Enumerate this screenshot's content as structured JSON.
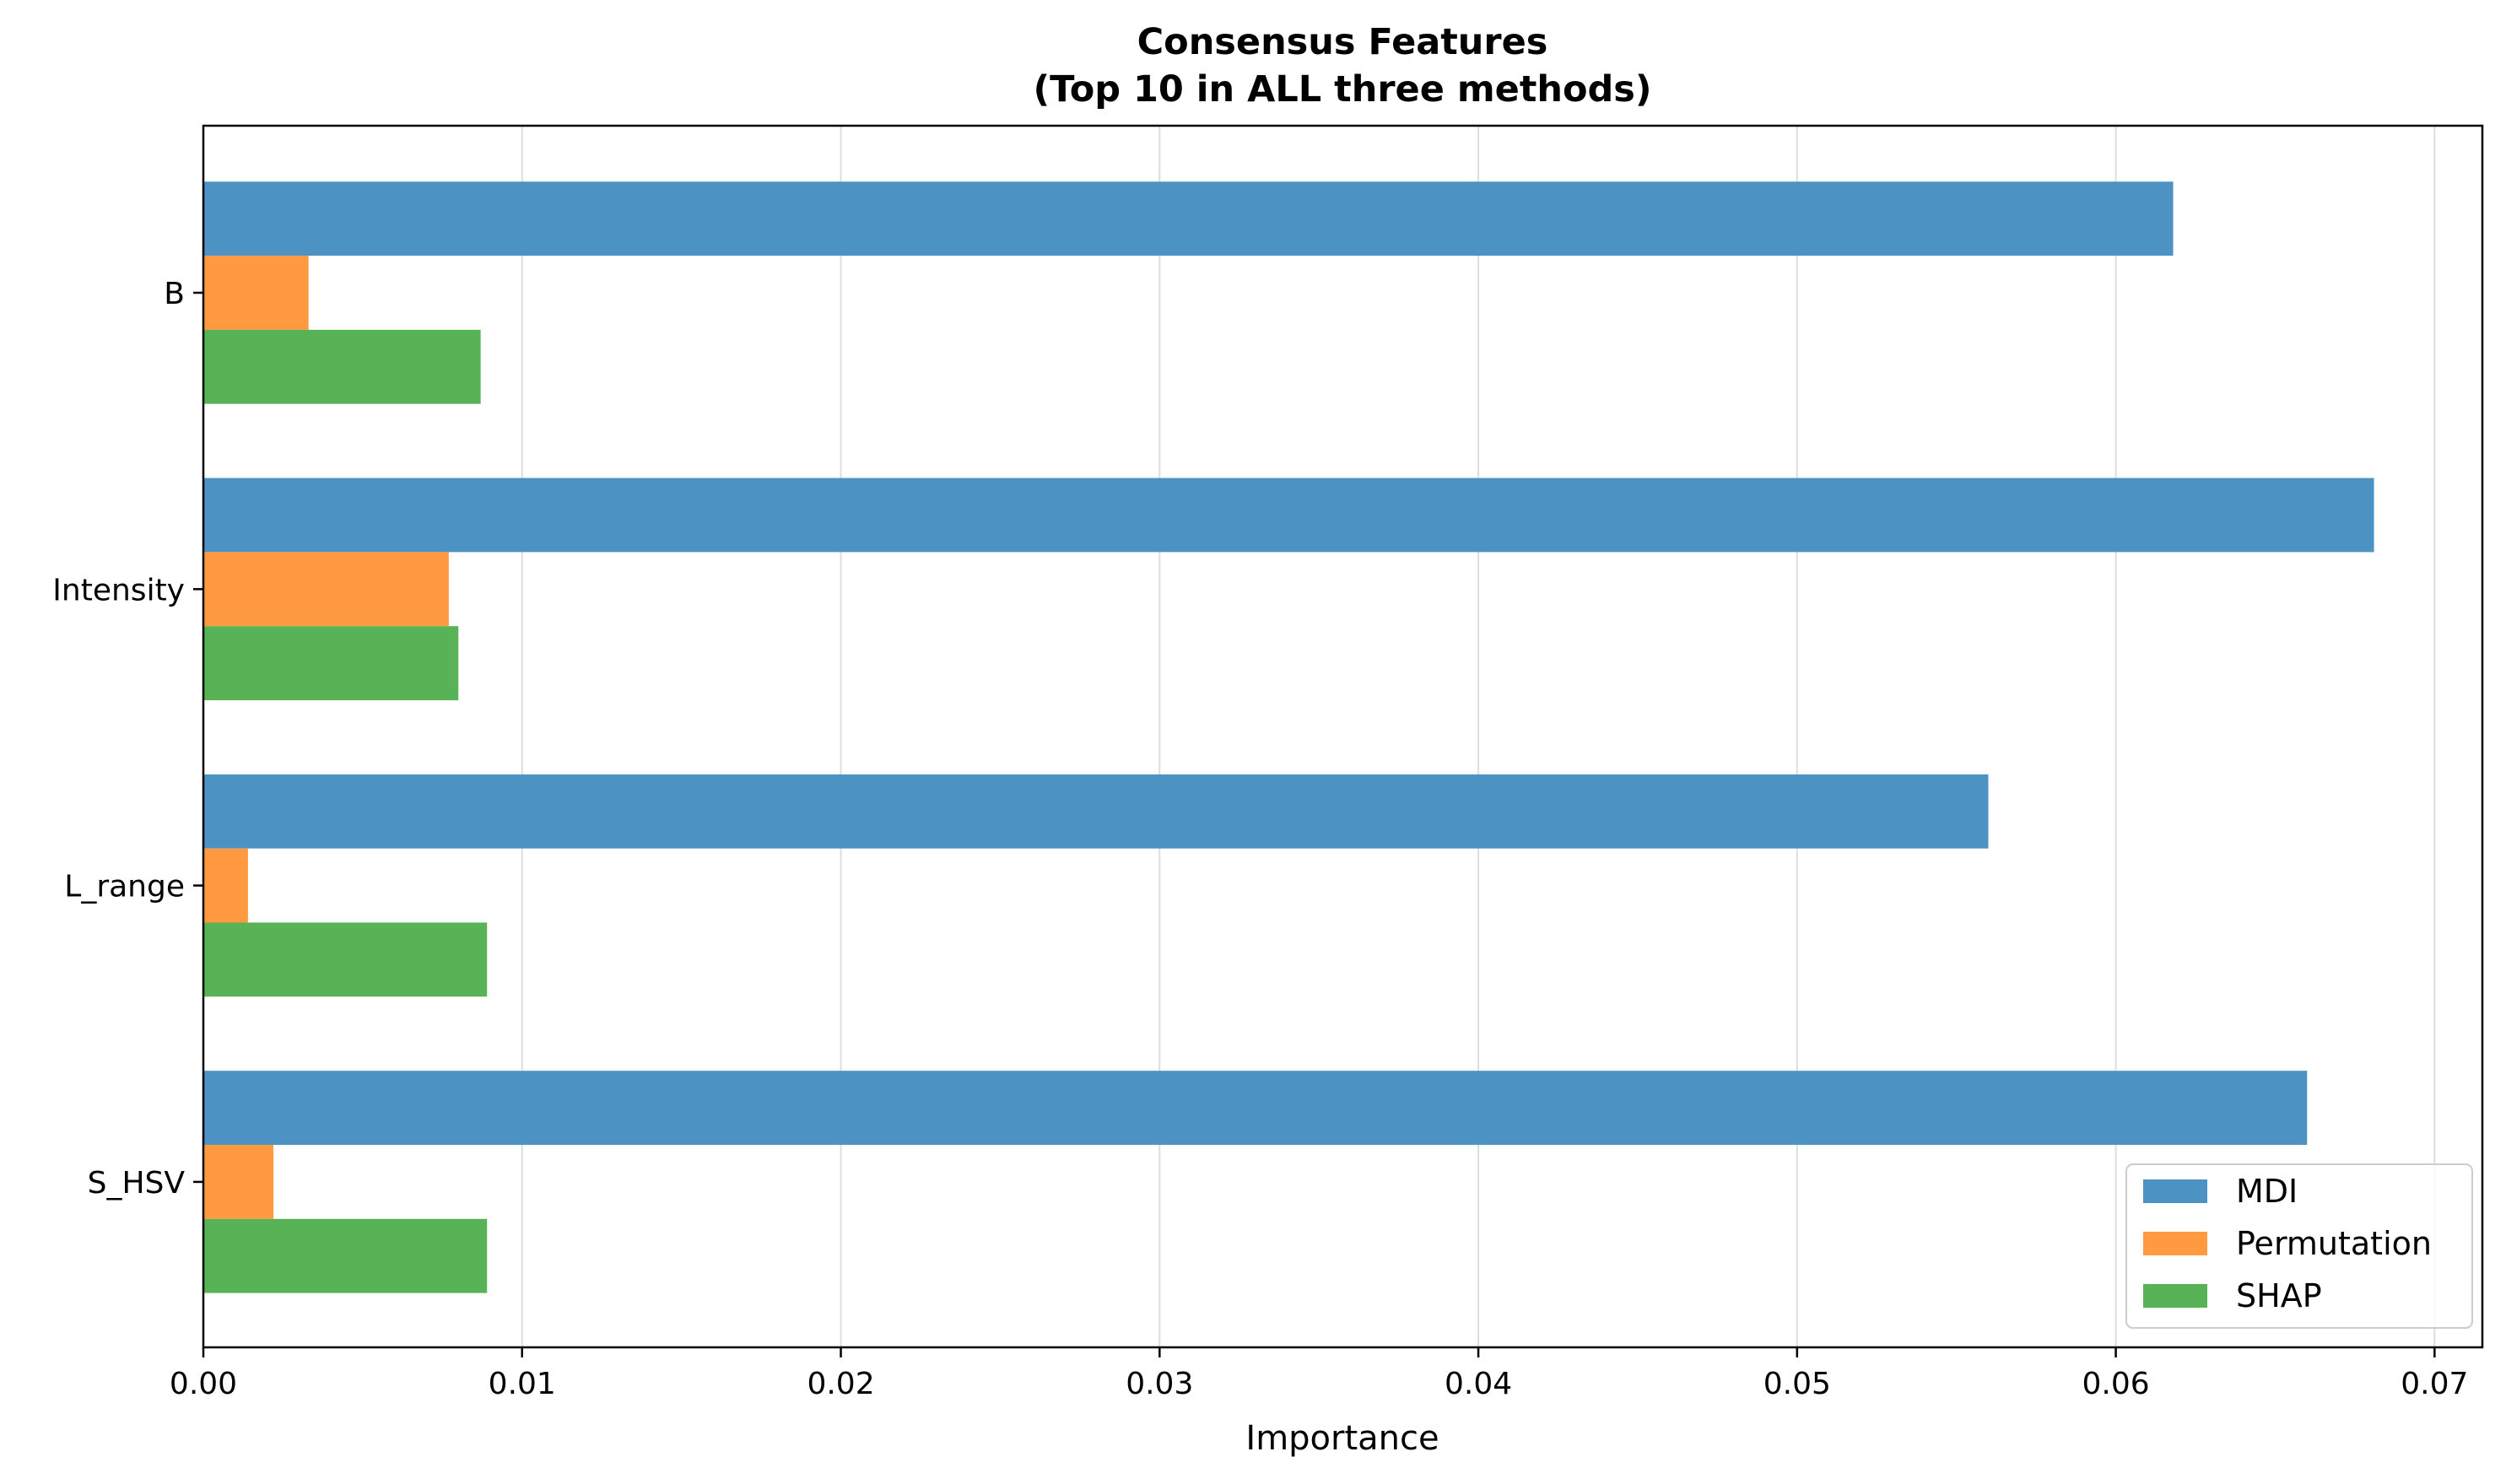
{
  "chart_data": {
    "type": "bar",
    "orientation": "horizontal",
    "title_line1": "Consensus Features",
    "title_line2": "(Top 10 in ALL three methods)",
    "xlabel": "Importance",
    "ylabel": "",
    "xlim": [
      0,
      0.0715
    ],
    "xticks": [
      0.0,
      0.01,
      0.02,
      0.03,
      0.04,
      0.05,
      0.06,
      0.07
    ],
    "xtick_labels": [
      "0.00",
      "0.01",
      "0.02",
      "0.03",
      "0.04",
      "0.05",
      "0.06",
      "0.07"
    ],
    "grid": "vertical gridlines",
    "legend_position": "lower-right",
    "categories": [
      "B",
      "Intensity",
      "L_range",
      "S_HSV"
    ],
    "series": [
      {
        "name": "MDI",
        "color": "#4c93c3",
        "values": [
          0.0618,
          0.0681,
          0.056,
          0.066
        ]
      },
      {
        "name": "Permutation",
        "color": "#ff9a40",
        "values": [
          0.0033,
          0.0077,
          0.0014,
          0.0022
        ]
      },
      {
        "name": "SHAP",
        "color": "#57b356",
        "values": [
          0.0087,
          0.008,
          0.0089,
          0.0089
        ]
      }
    ]
  }
}
